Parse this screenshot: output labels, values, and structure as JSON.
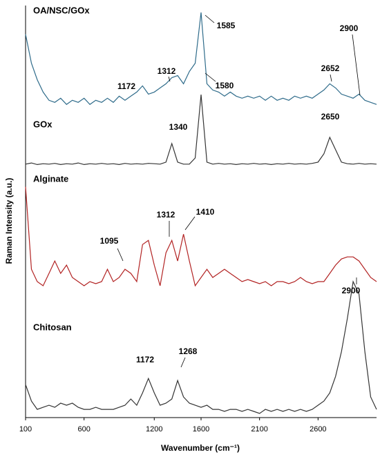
{
  "chart_data": {
    "type": "line",
    "xlabel": "Wavenumber (cm⁻¹)",
    "ylabel": "Raman Intensity (a.u.)",
    "xlim": [
      100,
      3100
    ],
    "xticks": [
      100,
      600,
      1200,
      1600,
      2100,
      2600
    ],
    "ylim": [
      0,
      100
    ],
    "x": [
      100,
      150,
      200,
      250,
      300,
      350,
      400,
      450,
      500,
      550,
      600,
      650,
      700,
      750,
      800,
      850,
      900,
      950,
      1000,
      1050,
      1100,
      1150,
      1200,
      1250,
      1300,
      1350,
      1400,
      1450,
      1500,
      1550,
      1600,
      1650,
      1700,
      1750,
      1800,
      1850,
      1900,
      1950,
      2000,
      2050,
      2100,
      2150,
      2200,
      2250,
      2300,
      2350,
      2400,
      2450,
      2500,
      2550,
      2600,
      2650,
      2700,
      2750,
      2800,
      2850,
      2900,
      2950,
      3000,
      3050,
      3100
    ],
    "series": [
      {
        "name": "OA/NSC/GOx",
        "color": "#2e6b8a",
        "values": [
          93,
          86,
          82,
          79,
          77,
          76.5,
          77.5,
          76,
          77,
          76.5,
          77.5,
          76,
          77,
          76.5,
          77.5,
          76.5,
          78,
          77,
          78,
          79,
          80.5,
          78.5,
          79,
          80,
          81,
          82.5,
          83,
          81,
          84,
          86,
          98.3,
          81,
          79.5,
          79,
          78,
          79,
          78,
          77.5,
          78,
          77.5,
          78,
          77,
          78,
          77,
          77.5,
          77,
          78,
          77.5,
          78,
          77.5,
          78.5,
          79.5,
          81,
          80,
          78.5,
          78,
          77.5,
          78.5,
          77,
          76.5,
          76
        ]
      },
      {
        "name": "GOx",
        "color": "#333333",
        "values": [
          61.5,
          61.8,
          61.4,
          61.6,
          61.5,
          61.7,
          61.4,
          61.6,
          61.5,
          61.8,
          61.4,
          61.6,
          61.5,
          61.7,
          61.5,
          61.6,
          61.4,
          61.7,
          61.5,
          61.6,
          61.5,
          61.7,
          61.6,
          61.5,
          62,
          66.5,
          62,
          61.5,
          61.5,
          63,
          78.4,
          62,
          61.5,
          61.7,
          61.5,
          61.6,
          61.4,
          61.6,
          61.5,
          61.7,
          61.5,
          61.6,
          61.4,
          61.6,
          61.5,
          61.7,
          61.5,
          61.6,
          61.5,
          61.7,
          62,
          64,
          68,
          65,
          62,
          61.6,
          61.5,
          61.7,
          61.5,
          61.6,
          61.5
        ]
      },
      {
        "name": "Alginate",
        "color": "#b22222",
        "values": [
          56,
          36,
          33,
          32,
          35,
          38,
          35,
          37,
          34,
          33,
          32,
          33,
          32.5,
          33,
          36,
          33,
          34,
          36,
          35,
          33,
          42,
          43,
          37,
          32,
          40,
          43,
          38,
          44.5,
          38,
          32,
          34,
          36,
          34,
          35,
          36,
          35,
          34,
          33,
          33.5,
          33,
          32.5,
          33,
          32,
          33,
          33,
          32.5,
          33,
          34,
          33,
          32.5,
          33,
          33,
          35,
          37,
          38.5,
          39,
          39,
          38,
          36,
          34,
          33
        ]
      },
      {
        "name": "Chitosan",
        "color": "#333333",
        "values": [
          8,
          4,
          2,
          2.5,
          3,
          2.5,
          3.5,
          3,
          3.5,
          2.5,
          2,
          2,
          2.5,
          2,
          2,
          2,
          2.5,
          3,
          4.5,
          3,
          6,
          9.5,
          6,
          3,
          3.5,
          4.5,
          9,
          5,
          3.5,
          3,
          2.5,
          3,
          2,
          2,
          1.5,
          2,
          2,
          1.5,
          2,
          1.5,
          1,
          2,
          1.5,
          2,
          1.5,
          2,
          1.5,
          2,
          1.5,
          2,
          3,
          4,
          6,
          10,
          16,
          24,
          33,
          30,
          16,
          5,
          2
        ]
      }
    ],
    "annotations": [
      "1172",
      "1312",
      "1585",
      "2900",
      "2652",
      "1340",
      "1580",
      "2650",
      "1095",
      "1312",
      "1410",
      "2900",
      "1172",
      "1268"
    ]
  }
}
